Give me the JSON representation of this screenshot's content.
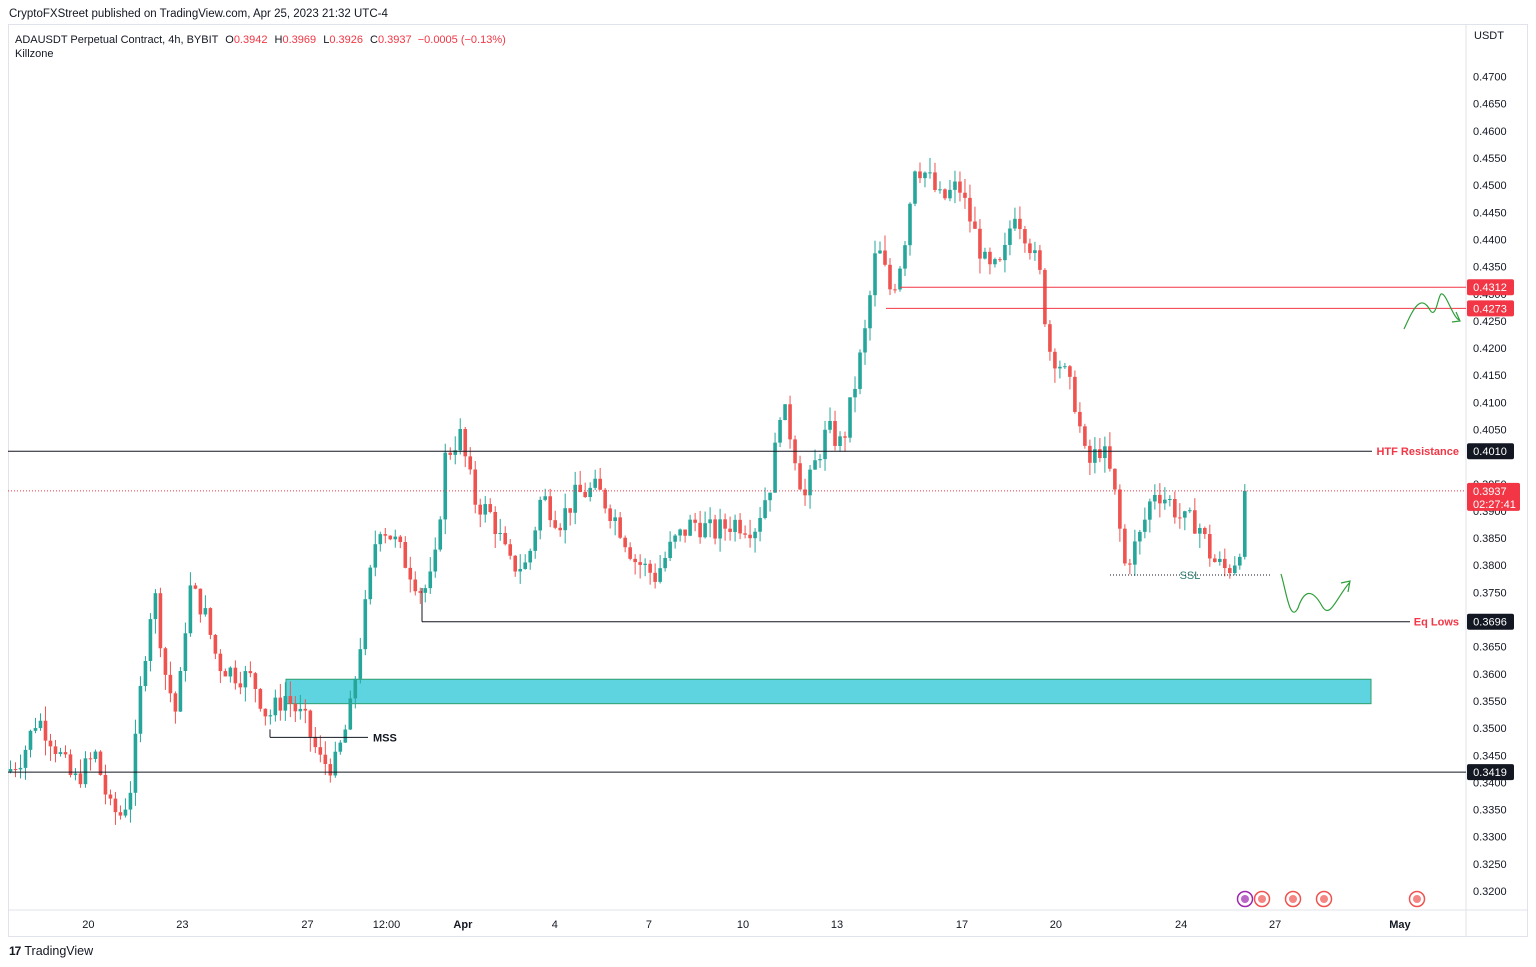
{
  "publisher": "CryptoFXStreet published on TradingView.com, Apr 25, 2023 21:32 UTC-4",
  "legend": {
    "symbol": "ADAUSDT Perpetual Contract, 4h, BYBIT",
    "o_label": "O",
    "o_val": "0.3942",
    "h_label": "H",
    "h_val": "0.3969",
    "l_label": "L",
    "l_val": "0.3926",
    "c_label": "C",
    "c_val": "0.3937",
    "change": "−0.0005 (−0.13%)"
  },
  "indicator": "Killzone",
  "footer": {
    "logo": "17",
    "brand": "TradingView"
  },
  "colors": {
    "up": "#26a69a",
    "down": "#ef5350",
    "zone": "#5dd4e0",
    "label_red": "#f23645"
  },
  "chart_data": {
    "type": "candlestick",
    "currency": "USDT",
    "ylim": [
      0.3165,
      0.4795
    ],
    "y_ticks": [
      "0.3200",
      "0.3250",
      "0.3300",
      "0.3350",
      "0.3400",
      "0.3450",
      "0.3500",
      "0.3550",
      "0.3600",
      "0.3650",
      "0.3700",
      "0.3750",
      "0.3800",
      "0.3850",
      "0.3900",
      "0.3950",
      "0.4050",
      "0.4100",
      "0.4150",
      "0.4200",
      "0.4250",
      "0.4300",
      "0.4350",
      "0.4400",
      "0.4450",
      "0.4500",
      "0.4550",
      "0.4600",
      "0.4650",
      "0.4700"
    ],
    "x_ticks": [
      {
        "label": "20",
        "t": 0.0551
      },
      {
        "label": "23",
        "t": 0.1196
      },
      {
        "label": "27",
        "t": 0.2054
      },
      {
        "label": "12:00",
        "t": 0.2596
      },
      {
        "label": "Apr",
        "t": 0.312
      },
      {
        "label": "4",
        "t": 0.375
      },
      {
        "label": "7",
        "t": 0.4396
      },
      {
        "label": "10",
        "t": 0.5041
      },
      {
        "label": "13",
        "t": 0.5686
      },
      {
        "label": "17",
        "t": 0.6543
      },
      {
        "label": "20",
        "t": 0.7187
      },
      {
        "label": "24",
        "t": 0.8046
      },
      {
        "label": "27",
        "t": 0.8691
      },
      {
        "label": "May",
        "t": 0.9547
      }
    ],
    "last_price": "0.3937",
    "countdown": "02:27:41",
    "levels": [
      {
        "name": "HTF Resistance",
        "value": "0.4010",
        "price": 0.401
      },
      {
        "name": "Eq Lows",
        "value": "0.3696",
        "price": 0.3696
      },
      {
        "name": "",
        "value": "0.3419",
        "price": 0.3419
      },
      {
        "name": "",
        "value": "0.4312",
        "price": 0.4312
      },
      {
        "name": "",
        "value": "0.4273",
        "price": 0.4273
      }
    ],
    "zone": {
      "top": 0.359,
      "bottom": 0.3545
    },
    "annotations": [
      "MSS",
      "SSL"
    ],
    "anchors": [
      {
        "t": 0.0,
        "p": 0.342
      },
      {
        "t": 0.01,
        "p": 0.345
      },
      {
        "t": 0.02,
        "p": 0.352
      },
      {
        "t": 0.03,
        "p": 0.348
      },
      {
        "t": 0.045,
        "p": 0.34
      },
      {
        "t": 0.06,
        "p": 0.345
      },
      {
        "t": 0.07,
        "p": 0.335
      },
      {
        "t": 0.078,
        "p": 0.334
      },
      {
        "t": 0.085,
        "p": 0.34
      },
      {
        "t": 0.092,
        "p": 0.36
      },
      {
        "t": 0.1,
        "p": 0.376
      },
      {
        "t": 0.108,
        "p": 0.36
      },
      {
        "t": 0.116,
        "p": 0.352
      },
      {
        "t": 0.124,
        "p": 0.376
      },
      {
        "t": 0.134,
        "p": 0.372
      },
      {
        "t": 0.144,
        "p": 0.362
      },
      {
        "t": 0.156,
        "p": 0.36
      },
      {
        "t": 0.168,
        "p": 0.359
      },
      {
        "t": 0.178,
        "p": 0.352
      },
      {
        "t": 0.19,
        "p": 0.356
      },
      {
        "t": 0.204,
        "p": 0.351
      },
      {
        "t": 0.214,
        "p": 0.344
      },
      {
        "t": 0.224,
        "p": 0.343
      },
      {
        "t": 0.234,
        "p": 0.352
      },
      {
        "t": 0.244,
        "p": 0.37
      },
      {
        "t": 0.254,
        "p": 0.388
      },
      {
        "t": 0.264,
        "p": 0.385
      },
      {
        "t": 0.274,
        "p": 0.38
      },
      {
        "t": 0.284,
        "p": 0.375
      },
      {
        "t": 0.292,
        "p": 0.378
      },
      {
        "t": 0.3,
        "p": 0.4
      },
      {
        "t": 0.31,
        "p": 0.404
      },
      {
        "t": 0.32,
        "p": 0.392
      },
      {
        "t": 0.332,
        "p": 0.389
      },
      {
        "t": 0.344,
        "p": 0.38
      },
      {
        "t": 0.356,
        "p": 0.38
      },
      {
        "t": 0.366,
        "p": 0.393
      },
      {
        "t": 0.378,
        "p": 0.388
      },
      {
        "t": 0.39,
        "p": 0.393
      },
      {
        "t": 0.404,
        "p": 0.394
      },
      {
        "t": 0.418,
        "p": 0.388
      },
      {
        "t": 0.43,
        "p": 0.381
      },
      {
        "t": 0.444,
        "p": 0.378
      },
      {
        "t": 0.456,
        "p": 0.384
      },
      {
        "t": 0.47,
        "p": 0.388
      },
      {
        "t": 0.484,
        "p": 0.386
      },
      {
        "t": 0.498,
        "p": 0.388
      },
      {
        "t": 0.512,
        "p": 0.387
      },
      {
        "t": 0.524,
        "p": 0.396
      },
      {
        "t": 0.53,
        "p": 0.41
      },
      {
        "t": 0.538,
        "p": 0.403
      },
      {
        "t": 0.546,
        "p": 0.392
      },
      {
        "t": 0.554,
        "p": 0.399
      },
      {
        "t": 0.562,
        "p": 0.405
      },
      {
        "t": 0.572,
        "p": 0.402
      },
      {
        "t": 0.58,
        "p": 0.412
      },
      {
        "t": 0.588,
        "p": 0.423
      },
      {
        "t": 0.596,
        "p": 0.439
      },
      {
        "t": 0.606,
        "p": 0.43
      },
      {
        "t": 0.614,
        "p": 0.438
      },
      {
        "t": 0.622,
        "p": 0.454
      },
      {
        "t": 0.63,
        "p": 0.452
      },
      {
        "t": 0.64,
        "p": 0.447
      },
      {
        "t": 0.652,
        "p": 0.45
      },
      {
        "t": 0.662,
        "p": 0.442
      },
      {
        "t": 0.672,
        "p": 0.434
      },
      {
        "t": 0.682,
        "p": 0.435
      },
      {
        "t": 0.69,
        "p": 0.446
      },
      {
        "t": 0.7,
        "p": 0.44
      },
      {
        "t": 0.708,
        "p": 0.433
      },
      {
        "t": 0.714,
        "p": 0.42
      },
      {
        "t": 0.722,
        "p": 0.417
      },
      {
        "t": 0.732,
        "p": 0.41
      },
      {
        "t": 0.74,
        "p": 0.398
      },
      {
        "t": 0.75,
        "p": 0.402
      },
      {
        "t": 0.758,
        "p": 0.395
      },
      {
        "t": 0.766,
        "p": 0.38
      },
      {
        "t": 0.776,
        "p": 0.385
      },
      {
        "t": 0.786,
        "p": 0.394
      },
      {
        "t": 0.796,
        "p": 0.392
      },
      {
        "t": 0.806,
        "p": 0.388
      },
      {
        "t": 0.816,
        "p": 0.388
      },
      {
        "t": 0.826,
        "p": 0.381
      },
      {
        "t": 0.836,
        "p": 0.379
      },
      {
        "t": 0.844,
        "p": 0.382
      },
      {
        "t": 0.85,
        "p": 0.3937
      }
    ]
  }
}
